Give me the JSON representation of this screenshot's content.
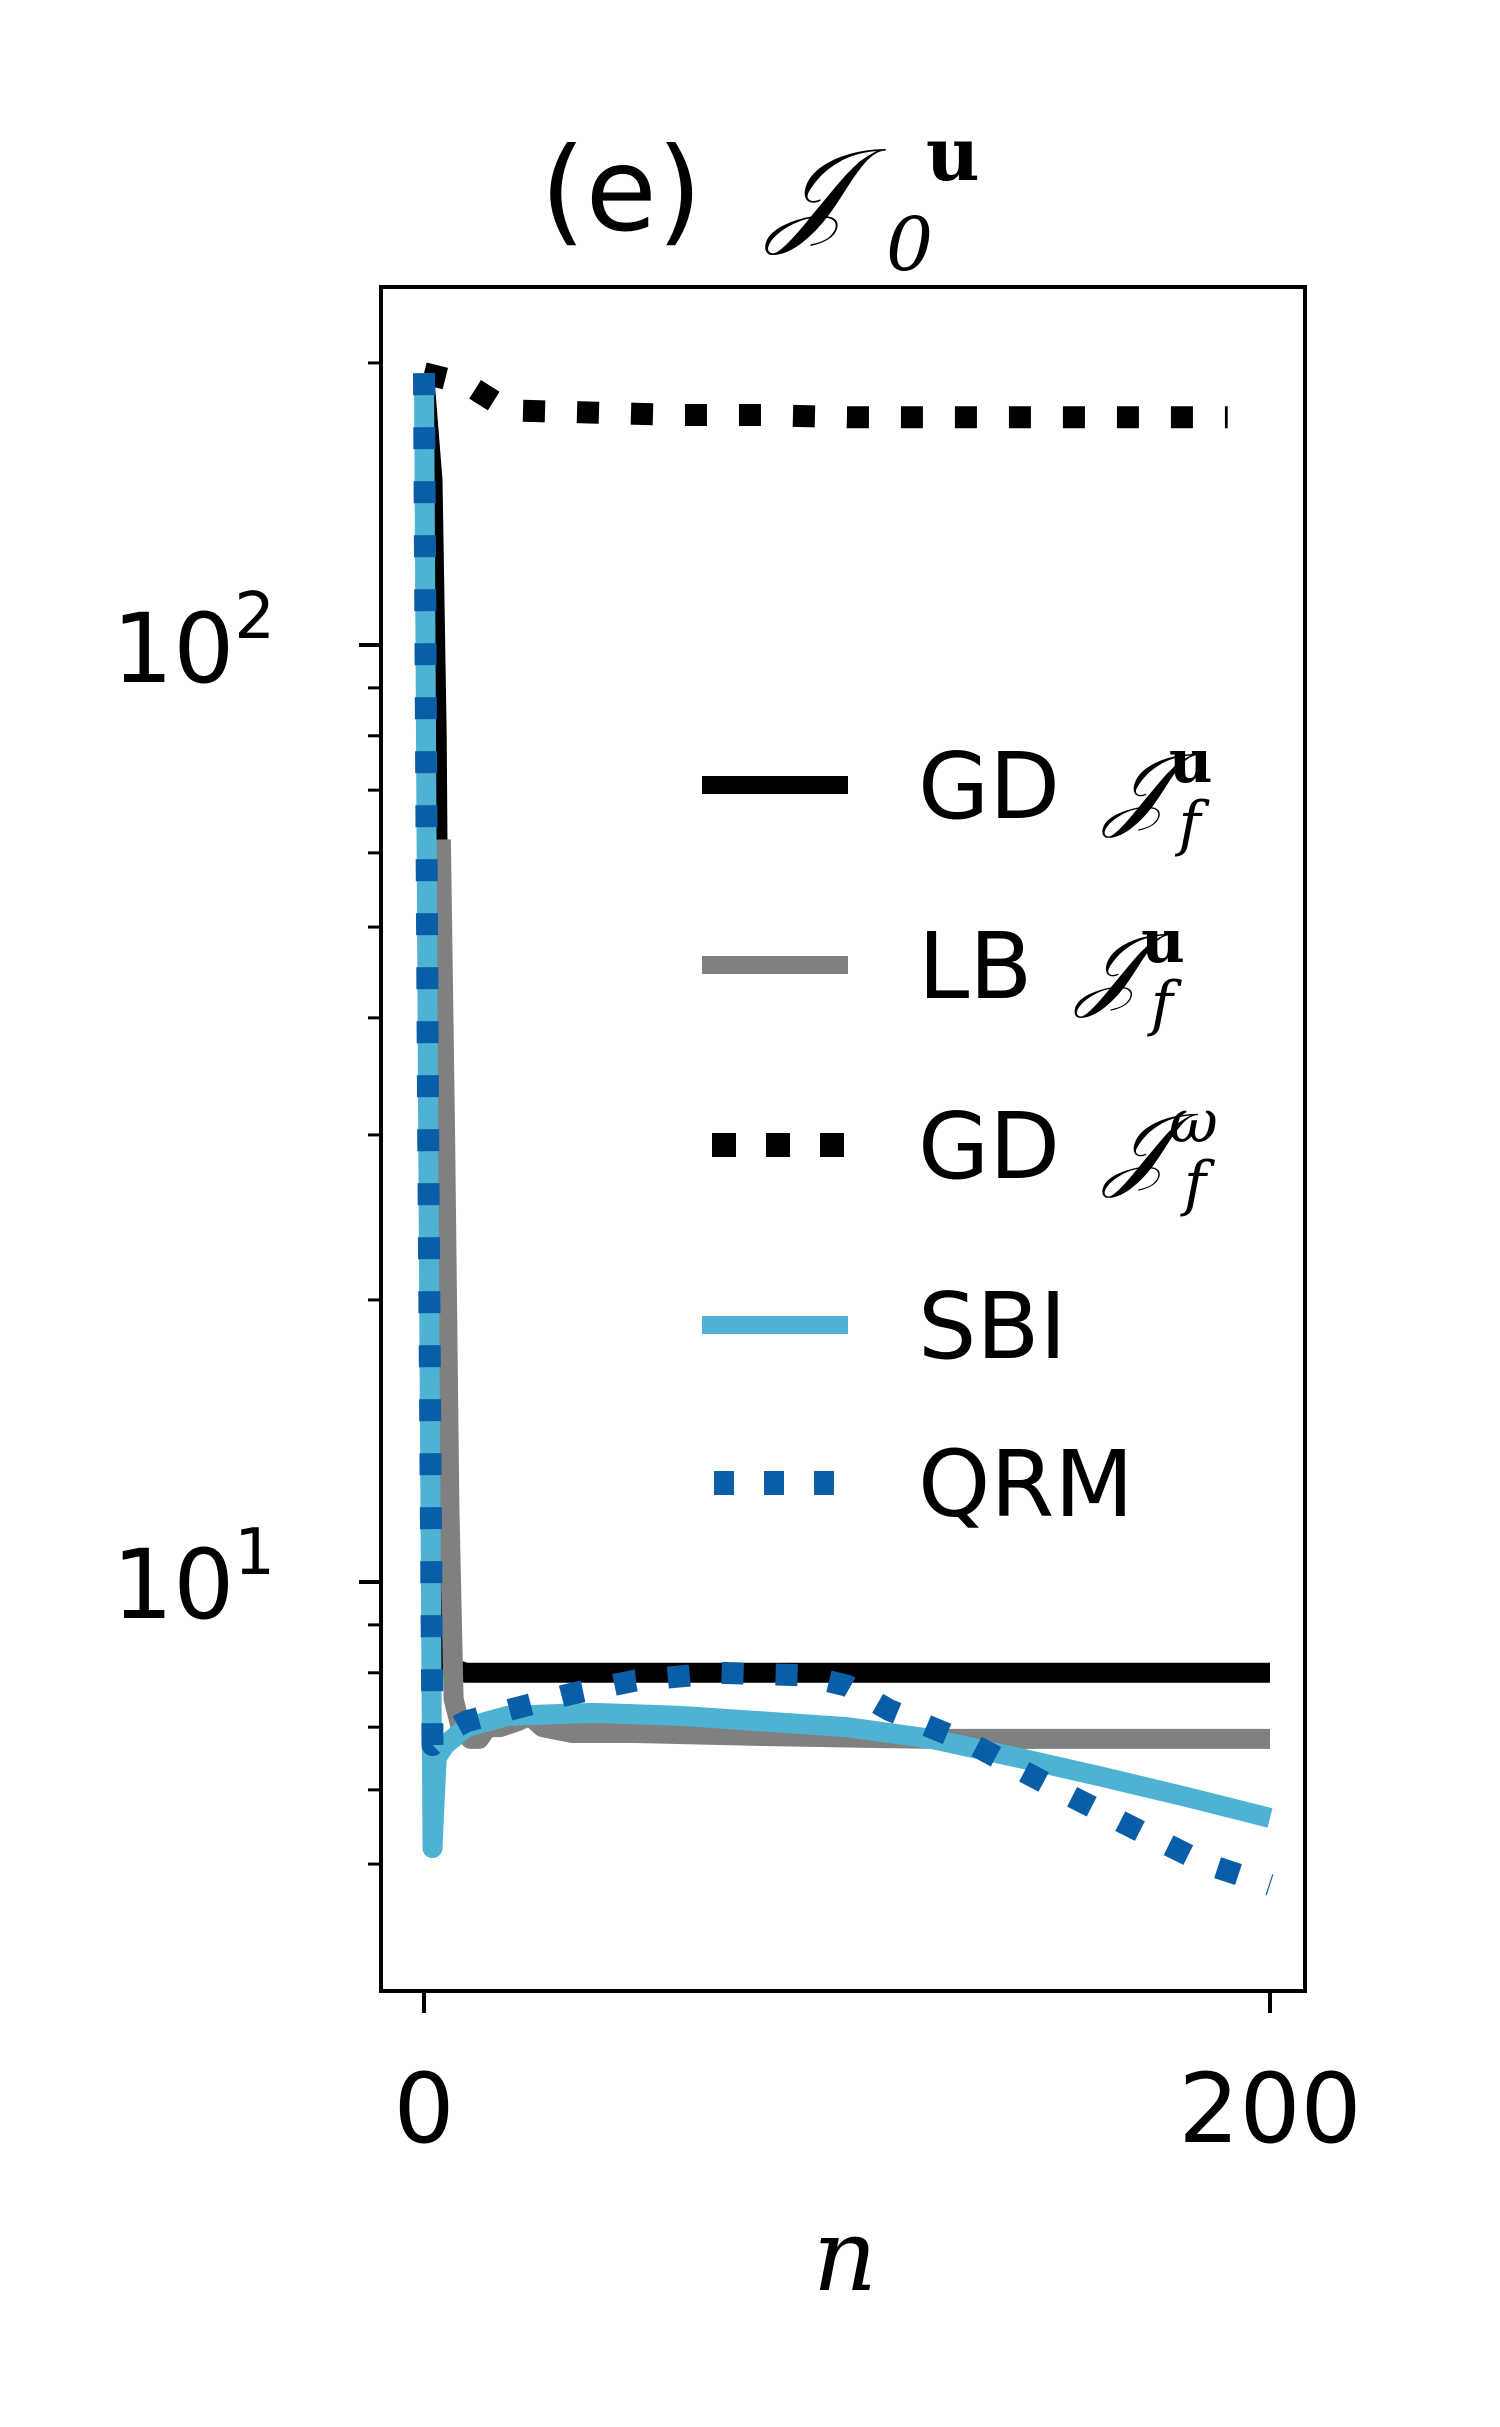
{
  "chart_data": {
    "type": "line",
    "title": "(e) 𝒥₀ᵘ",
    "title_parts": {
      "prefix": "(e)",
      "symbol": "𝒥",
      "sub": "0",
      "sup": "u"
    },
    "xlabel": "n",
    "ylabel": "",
    "x_scale": "linear",
    "y_scale": "log",
    "xlim": [
      -10,
      210
    ],
    "ylim": [
      4.2,
      230
    ],
    "x_ticks": [
      0,
      200
    ],
    "x_tick_labels": [
      "0",
      "200"
    ],
    "y_ticks": [
      10,
      100
    ],
    "y_tick_labels": [
      {
        "base": "10",
        "exp": "1"
      },
      {
        "base": "10",
        "exp": "2"
      }
    ],
    "grid": false,
    "legend": {
      "placement": "center-right"
    },
    "series": [
      {
        "name": "GD 𝒥_f^u",
        "label_parts": {
          "prefix": "GD",
          "sup": "u",
          "sub": "f"
        },
        "color": "#000000",
        "style": "solid",
        "points": [
          [
            0,
            195
          ],
          [
            2,
            150
          ],
          [
            3,
            80
          ],
          [
            4,
            20
          ],
          [
            5,
            8.5
          ],
          [
            6,
            8.1
          ],
          [
            10,
            8.0
          ],
          [
            200,
            8.0
          ]
        ]
      },
      {
        "name": "LB 𝒥_f^u",
        "label_parts": {
          "prefix": "LB",
          "sup": "u",
          "sub": "f"
        },
        "color": "#808080",
        "style": "solid",
        "points": [
          [
            4,
            62
          ],
          [
            5,
            30
          ],
          [
            6,
            12
          ],
          [
            7,
            7.5
          ],
          [
            8,
            7.2
          ],
          [
            9,
            6.9
          ],
          [
            10,
            7.1
          ],
          [
            11,
            6.8
          ],
          [
            13,
            6.8
          ],
          [
            15,
            7.0
          ],
          [
            18,
            7.0
          ],
          [
            22,
            7.1
          ],
          [
            25,
            7.2
          ],
          [
            28,
            7.0
          ],
          [
            35,
            6.9
          ],
          [
            50,
            6.9
          ],
          [
            80,
            6.85
          ],
          [
            120,
            6.8
          ],
          [
            200,
            6.8
          ]
        ]
      },
      {
        "name": "GD 𝒥_f^ω",
        "label_parts": {
          "prefix": "GD",
          "sup": "ω",
          "sub": "f"
        },
        "color": "#000000",
        "style": "dotted",
        "points": [
          [
            0,
            195
          ],
          [
            10,
            190
          ],
          [
            20,
            178
          ],
          [
            40,
            177
          ],
          [
            60,
            176
          ],
          [
            80,
            176
          ],
          [
            100,
            175
          ],
          [
            150,
            175
          ],
          [
            190,
            175
          ]
        ]
      },
      {
        "name": "SBI",
        "label_parts": {
          "prefix": "SBI"
        },
        "color": "#4eb3d3",
        "style": "solid",
        "points": [
          [
            0,
            195
          ],
          [
            1,
            30
          ],
          [
            2,
            5.2
          ],
          [
            3,
            6.5
          ],
          [
            5,
            6.7
          ],
          [
            10,
            7.0
          ],
          [
            20,
            7.2
          ],
          [
            40,
            7.25
          ],
          [
            60,
            7.2
          ],
          [
            80,
            7.1
          ],
          [
            100,
            7.0
          ],
          [
            120,
            6.8
          ],
          [
            140,
            6.5
          ],
          [
            160,
            6.2
          ],
          [
            180,
            5.9
          ],
          [
            200,
            5.6
          ]
        ]
      },
      {
        "name": "QRM",
        "label_parts": {
          "prefix": "QRM"
        },
        "color": "#0a5ea8",
        "style": "dotted",
        "points": [
          [
            0,
            195
          ],
          [
            1,
            30
          ],
          [
            2,
            6.7
          ],
          [
            5,
            6.9
          ],
          [
            10,
            7.1
          ],
          [
            20,
            7.3
          ],
          [
            35,
            7.6
          ],
          [
            50,
            7.85
          ],
          [
            70,
            8.0
          ],
          [
            90,
            7.95
          ],
          [
            100,
            7.75
          ],
          [
            110,
            7.3
          ],
          [
            130,
            6.7
          ],
          [
            150,
            6.0
          ],
          [
            170,
            5.4
          ],
          [
            185,
            5.0
          ],
          [
            200,
            4.75
          ]
        ]
      }
    ]
  }
}
